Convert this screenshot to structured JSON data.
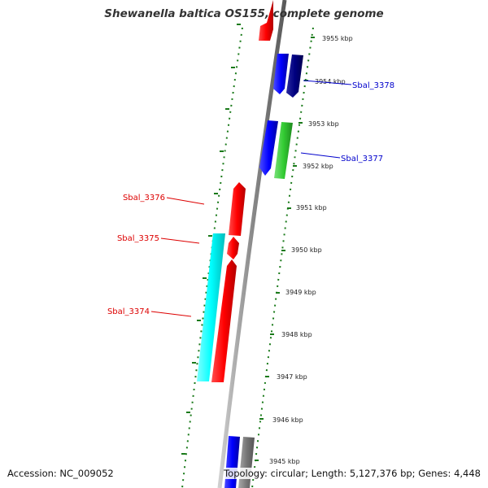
{
  "title": "Shewanella baltica OS155, complete genome",
  "footer": {
    "accession": "Accession: NC_009052",
    "summary": "Topology: circular; Length: 5,127,376 bp; Genes: 4,448"
  },
  "colors": {
    "backbone": "#888888",
    "ticks": "#1a7a1a",
    "gene_label_red": "#dd0000",
    "gene_label_blue": "#0000cc"
  },
  "scale_labels": [
    "3955 kbp",
    "3954 kbp",
    "3953 kbp",
    "3952 kbp",
    "3951 kbp",
    "3950 kbp",
    "3949 kbp",
    "3948 kbp",
    "3947 kbp",
    "3946 kbp",
    "3945 kbp"
  ],
  "features": [
    {
      "name": "",
      "strand": "+",
      "color": "#ff0000",
      "row": "inner"
    },
    {
      "name": "Sbal_3378",
      "strand": "-",
      "color": "#0000ff",
      "row": "outer"
    },
    {
      "name": "",
      "strand": "-",
      "color": "#000080",
      "row": "outer2"
    },
    {
      "name": "Sbal_3377",
      "strand": "-",
      "color": "#0000ff",
      "row": "outer"
    },
    {
      "name": "",
      "strand": "-",
      "color": "#33cc33",
      "row": "outer2"
    },
    {
      "name": "Sbal_3376",
      "strand": "+",
      "color": "#ff0000",
      "row": "inner"
    },
    {
      "name": "Sbal_3375",
      "strand": "+",
      "color": "#ff0000",
      "row": "inner"
    },
    {
      "name": "Sbal_3374",
      "strand": "+",
      "color": "#ff0000",
      "row": "inner"
    },
    {
      "name": "",
      "strand": "",
      "color": "#00ffff",
      "row": "inner2"
    },
    {
      "name": "",
      "strand": "",
      "color": "#0000ff",
      "row": "bottom1"
    },
    {
      "name": "",
      "strand": "",
      "color": "#777777",
      "row": "bottom2"
    }
  ],
  "gene_labels": [
    {
      "text": "Sbal_3378",
      "color": "#0000cc"
    },
    {
      "text": "Sbal_3377",
      "color": "#0000cc"
    },
    {
      "text": "Sbal_3376",
      "color": "#dd0000"
    },
    {
      "text": "Sbal_3375",
      "color": "#dd0000"
    },
    {
      "text": "Sbal_3374",
      "color": "#dd0000"
    }
  ]
}
